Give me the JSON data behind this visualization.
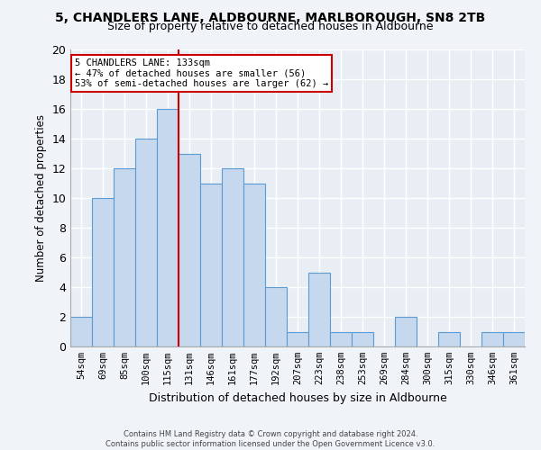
{
  "title": "5, CHANDLERS LANE, ALDBOURNE, MARLBOROUGH, SN8 2TB",
  "subtitle": "Size of property relative to detached houses in Aldbourne",
  "xlabel": "Distribution of detached houses by size in Aldbourne",
  "ylabel": "Number of detached properties",
  "categories": [
    "54sqm",
    "69sqm",
    "85sqm",
    "100sqm",
    "115sqm",
    "131sqm",
    "146sqm",
    "161sqm",
    "177sqm",
    "192sqm",
    "207sqm",
    "223sqm",
    "238sqm",
    "253sqm",
    "269sqm",
    "284sqm",
    "300sqm",
    "315sqm",
    "330sqm",
    "346sqm",
    "361sqm"
  ],
  "values": [
    2,
    10,
    12,
    14,
    16,
    13,
    11,
    12,
    11,
    4,
    1,
    5,
    1,
    1,
    0,
    2,
    0,
    1,
    0,
    1,
    1
  ],
  "bar_color": "#c5d8ed",
  "bar_edge_color": "#5b9bd5",
  "background_color": "#e8eef4",
  "grid_color": "#ffffff",
  "property_line_color": "#cc0000",
  "annotation_text": "5 CHANDLERS LANE: 133sqm\n← 47% of detached houses are smaller (56)\n53% of semi-detached houses are larger (62) →",
  "annotation_box_color": "#ffffff",
  "annotation_box_edge_color": "#cc0000",
  "ylim": [
    0,
    20
  ],
  "yticks": [
    0,
    2,
    4,
    6,
    8,
    10,
    12,
    14,
    16,
    18,
    20
  ],
  "footer_line1": "Contains HM Land Registry data © Crown copyright and database right 2024.",
  "footer_line2": "Contains public sector information licensed under the Open Government Licence v3.0.",
  "fig_bg": "#f0f4f8"
}
